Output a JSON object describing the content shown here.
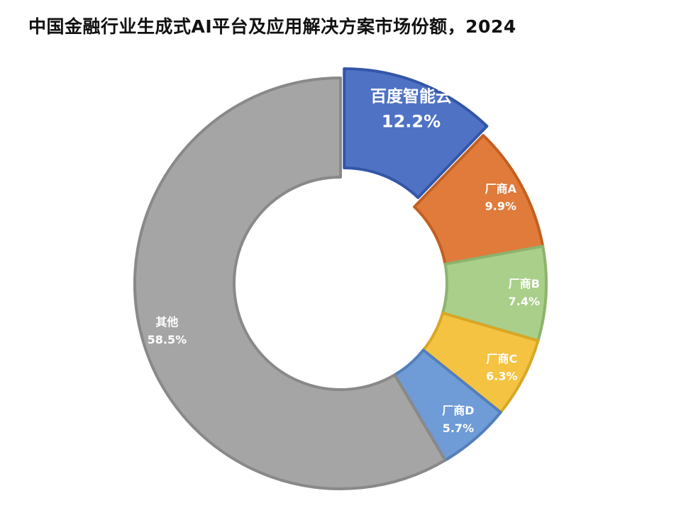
{
  "chart_data": {
    "type": "pie",
    "title": "中国金融行业生成式AI平台及应用解决方案市场份额，2024",
    "donut": true,
    "categories": [
      "百度智能云",
      "厂商A",
      "厂商B",
      "厂商C",
      "厂商D",
      "其他"
    ],
    "values": [
      12.2,
      9.9,
      7.4,
      6.3,
      5.7,
      58.5
    ],
    "value_labels": [
      "12.2%",
      "9.9%",
      "7.4%",
      "6.3%",
      "5.7%",
      "58.5%"
    ],
    "colors": [
      "#4F72C4",
      "#E07B3C",
      "#A9CF8A",
      "#F5C342",
      "#6F9BD6",
      "#A5A5A5"
    ],
    "legend": "none",
    "start_angle": "12 o'clock",
    "direction": "clockwise"
  }
}
